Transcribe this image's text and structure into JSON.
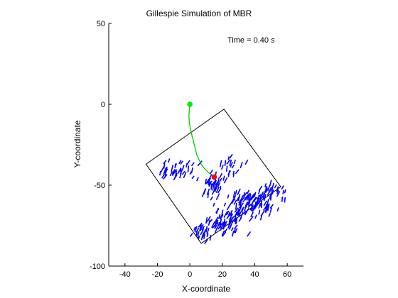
{
  "chart_data": {
    "type": "scatter",
    "title": "Gillespie Simulation of MBR",
    "xlabel": "X-coordinate",
    "ylabel": "Y-coordinate",
    "xlim": [
      -50,
      70
    ],
    "ylim": [
      -100,
      50
    ],
    "x_ticks": [
      -40,
      -20,
      0,
      20,
      40,
      60
    ],
    "y_ticks": [
      -100,
      -50,
      0,
      50
    ],
    "grid": false,
    "annotation": {
      "prefix": "Time = ",
      "value": "0.40",
      "unit": "s"
    },
    "box_corners": [
      [
        -27,
        -37
      ],
      [
        21,
        -3
      ],
      [
        56,
        -51
      ],
      [
        7,
        -86
      ]
    ],
    "start_point": [
      0,
      0
    ],
    "end_point": [
      15,
      -45
    ],
    "trajectory": [
      [
        0,
        0
      ],
      [
        -0.3,
        -3
      ],
      [
        -0.6,
        -7
      ],
      [
        -0.4,
        -11
      ],
      [
        0.3,
        -15
      ],
      [
        1.2,
        -19
      ],
      [
        2.2,
        -23
      ],
      [
        3.2,
        -27
      ],
      [
        4.2,
        -31
      ],
      [
        5.5,
        -34
      ],
      [
        7,
        -37
      ],
      [
        8.8,
        -39.5
      ],
      [
        10.8,
        -41.6
      ],
      [
        12.8,
        -43.4
      ],
      [
        15,
        -45
      ]
    ],
    "clusters": [
      {
        "cx": 14,
        "cy": -50,
        "sx": 3.5,
        "sy": 4,
        "n": 40
      },
      {
        "cx": -8,
        "cy": -41,
        "sx": 6,
        "sy": 3,
        "n": 38
      },
      {
        "cx": 25,
        "cy": -38,
        "sx": 4,
        "sy": 3.5,
        "n": 20
      },
      {
        "cx": 38,
        "cy": -62,
        "sx": 8,
        "sy": 4,
        "n": 110
      },
      {
        "cx": 50,
        "cy": -54,
        "sx": 4,
        "sy": 2.5,
        "n": 30
      },
      {
        "cx": 20,
        "cy": -73,
        "sx": 6,
        "sy": 4,
        "n": 70
      },
      {
        "cx": 7,
        "cy": -79,
        "sx": 4,
        "sy": 2.5,
        "n": 25
      }
    ],
    "colors": {
      "box": "#000000",
      "segments": "#0000ff",
      "trajectory": "#00cc00",
      "start": "#00ee00",
      "end": "#ff0000"
    }
  }
}
